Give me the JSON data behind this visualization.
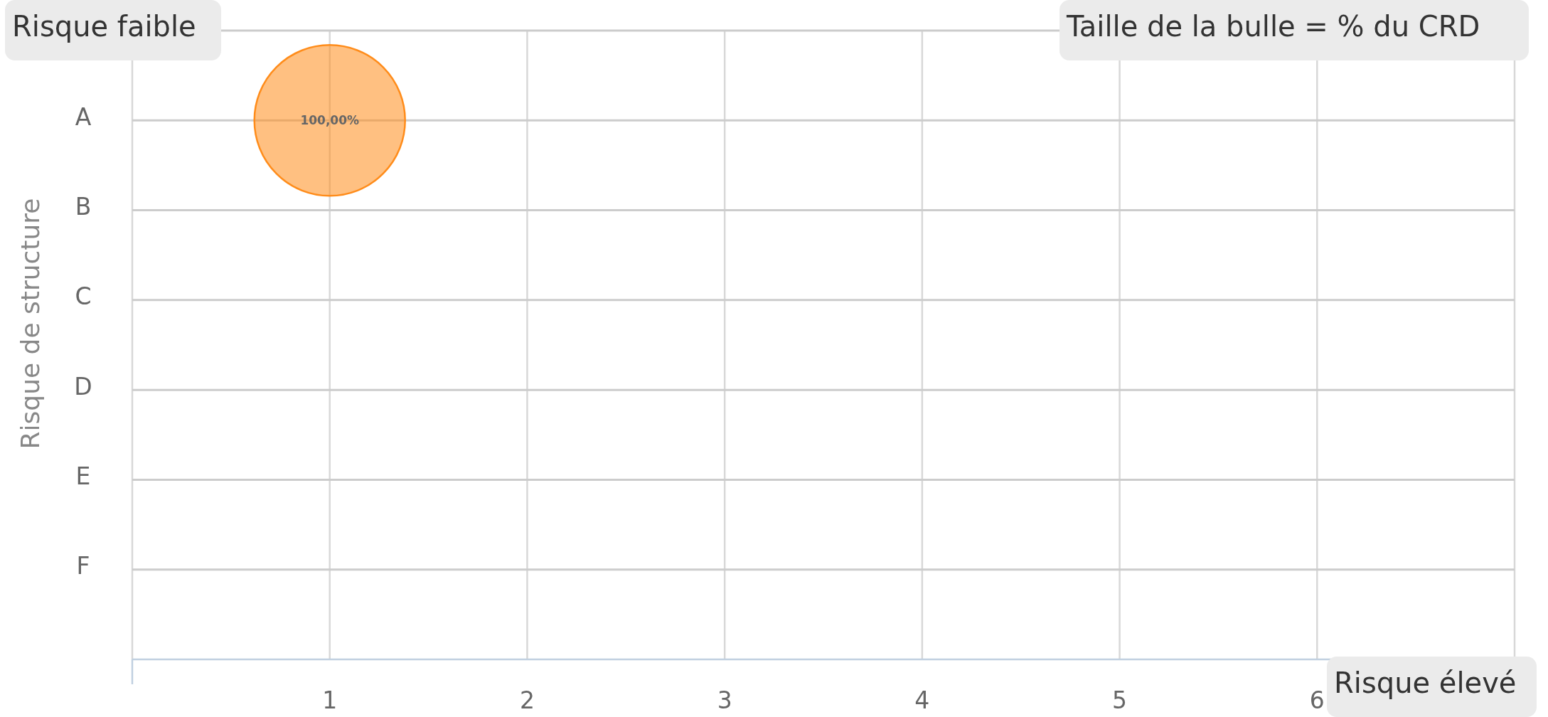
{
  "chart_data": {
    "type": "bubble",
    "orientation": "horizontal",
    "ylabel": "Risque de structure",
    "categories": [
      "A",
      "B",
      "C",
      "D",
      "E",
      "F"
    ],
    "xlim": [
      0,
      7
    ],
    "xticks": [
      1,
      2,
      3,
      4,
      5,
      6
    ],
    "grid": true,
    "series": [
      {
        "color": "#ff8c1a",
        "values": [
          1,
          null,
          null,
          null,
          null,
          null
        ],
        "sizes": [
          1,
          null,
          null,
          null,
          null,
          null
        ],
        "value_labels": [
          "100,00%",
          null,
          null,
          null,
          null,
          null
        ]
      }
    ],
    "annotations": [
      "Risque faible",
      "Taille de la bulle = % du CRD",
      "Risque élevé"
    ]
  }
}
